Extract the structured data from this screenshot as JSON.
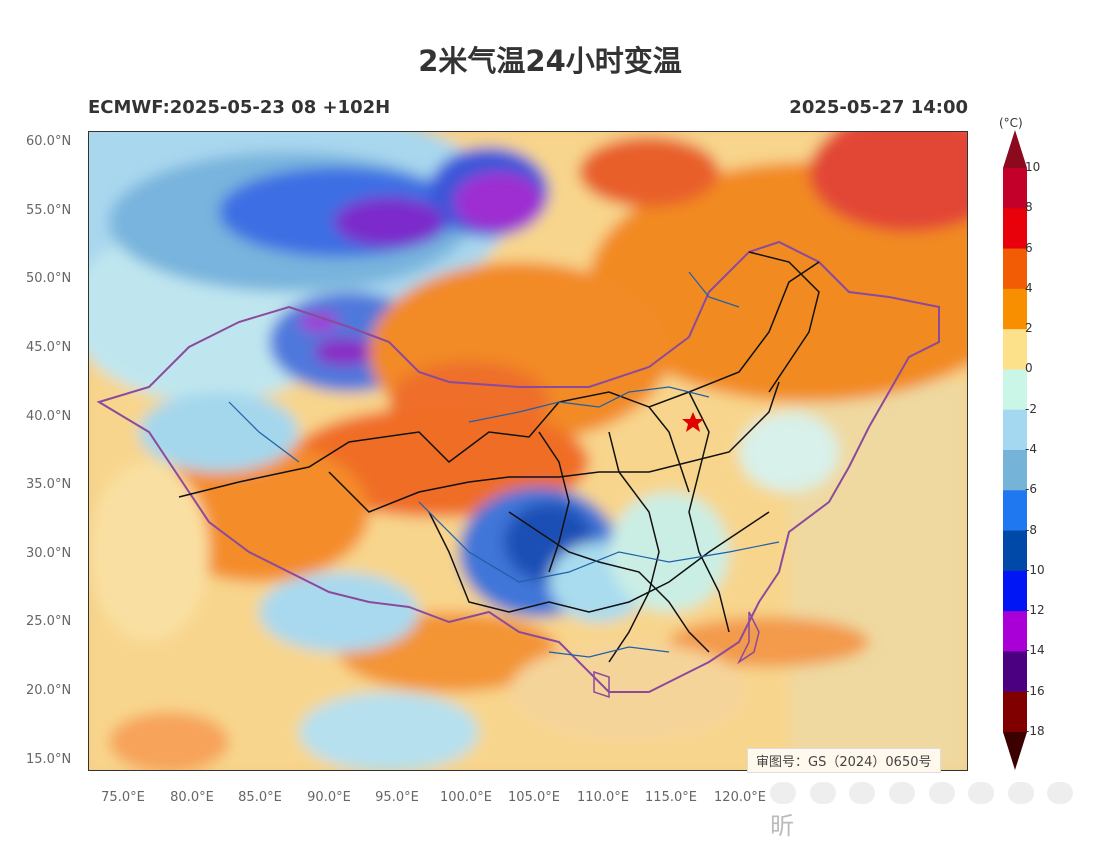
{
  "title": "2米气温24小时变温",
  "model_run": "ECMWF:2025-05-23 08 +102H",
  "valid_time": "2025-05-27 14:00",
  "approval_number": "审图号：GS（2024）0650号",
  "watermark_text": "昕",
  "map": {
    "lat_labels": [
      "60.0°N",
      "55.0°N",
      "50.0°N",
      "45.0°N",
      "40.0°N",
      "35.0°N",
      "30.0°N",
      "25.0°N",
      "20.0°N",
      "15.0°N"
    ],
    "lon_labels": [
      "75.0°E",
      "80.0°E",
      "85.0°E",
      "90.0°E",
      "95.0°E",
      "100.0°E",
      "105.0°E",
      "110.0°E",
      "115.0°E",
      "120.0°E"
    ],
    "boundary_color": "#8b4a9c",
    "province_color": "#111111",
    "river_color": "#1f5fa8",
    "capital_marker_color": "#e00000"
  },
  "colorbar": {
    "unit": "(°C)",
    "ticks": [
      "10",
      "8",
      "6",
      "4",
      "2",
      "0",
      "-2",
      "-4",
      "-6",
      "-8",
      "-10",
      "-12",
      "-14",
      "-16",
      "-18"
    ],
    "colors": [
      "#8b0a1e",
      "#c2002a",
      "#e8000b",
      "#f25c05",
      "#f78f00",
      "#fde18a",
      "#c9f6e6",
      "#a3d8f0",
      "#76b3d9",
      "#1f78f0",
      "#0049a8",
      "#0016f5",
      "#a800d6",
      "#4b0082",
      "#800000",
      "#3b0000"
    ]
  }
}
